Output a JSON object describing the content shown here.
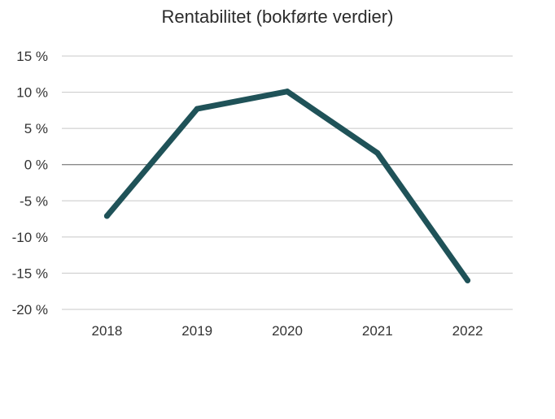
{
  "chart_data": {
    "type": "line",
    "title": "Rentabilitet (bokførte verdier)",
    "xlabel": "",
    "ylabel": "",
    "categories": [
      "2018",
      "2019",
      "2020",
      "2021",
      "2022"
    ],
    "series": [
      {
        "values": [
          -7.1,
          7.7,
          10.1,
          1.6,
          -16.0
        ]
      }
    ],
    "ylim": [
      -20,
      15
    ],
    "yticks": [
      15,
      10,
      5,
      0,
      -5,
      -10,
      -15,
      -20
    ],
    "ytick_labels": [
      "15 %",
      "10 %",
      "5 %",
      "0 %",
      "-5 %",
      "-10 %",
      "-15 %",
      "-20 %"
    ],
    "grid": true,
    "legend": "none",
    "colors": {
      "line": "#1f5258",
      "grid": "#c8c8c8",
      "zero_line": "#8a8a8a"
    }
  }
}
